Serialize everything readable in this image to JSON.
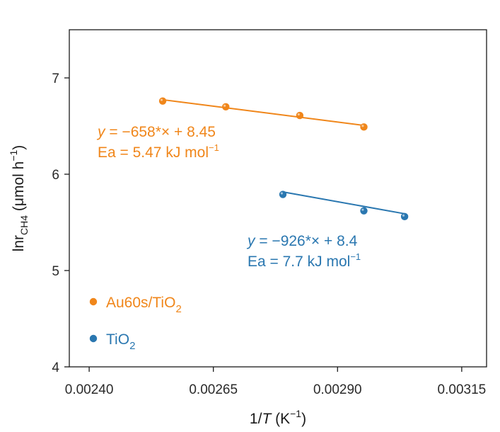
{
  "chart_data": {
    "type": "scatter",
    "xlabel_italic": "T",
    "xlabel_prefix": "1/",
    "xlabel_unit": "(K",
    "xlabel_unit_sup": "−1",
    "xlabel_close": ")",
    "ylabel_main": "lnr",
    "ylabel_sub": "CH4",
    "ylabel_unit": " (μmol h",
    "ylabel_unit_sup": "−1",
    "ylabel_close": ")",
    "xlim": [
      0.00236,
      0.0032
    ],
    "ylim": [
      4.0,
      7.5
    ],
    "x_ticks": [
      0.0024,
      0.00265,
      0.0029,
      0.00315
    ],
    "x_tick_labels": [
      "0.00240",
      "0.00265",
      "0.00290",
      "0.00315"
    ],
    "y_ticks": [
      4,
      5,
      6,
      7
    ],
    "y_tick_labels": [
      "4",
      "5",
      "6",
      "7"
    ],
    "grid": false,
    "legend_position": "bottom-left",
    "series": [
      {
        "name": "Au60s/TiO",
        "name_sub": "2",
        "color": "#f0861a",
        "x": [
          0.002548,
          0.002675,
          0.002824,
          0.002953
        ],
        "y": [
          6.76,
          6.7,
          6.61,
          6.49
        ],
        "fit": {
          "slope": -658,
          "intercept": 8.45
        },
        "equation_prefix": "y",
        "equation_rest": " = −658*× + 8.45",
        "ea_text": "Ea = 5.47 kJ mol",
        "ea_sup": "−1"
      },
      {
        "name": "TiO",
        "name_sub": "2",
        "color": "#2a77b0",
        "x": [
          0.00279,
          0.002953,
          0.003035
        ],
        "y": [
          5.79,
          5.62,
          5.56
        ],
        "fit": {
          "slope": -926,
          "intercept": 8.4
        },
        "equation_prefix": "y",
        "equation_rest": " = −926*× + 8.4",
        "ea_text": "Ea = 7.7 kJ mol",
        "ea_sup": "−1"
      }
    ]
  }
}
